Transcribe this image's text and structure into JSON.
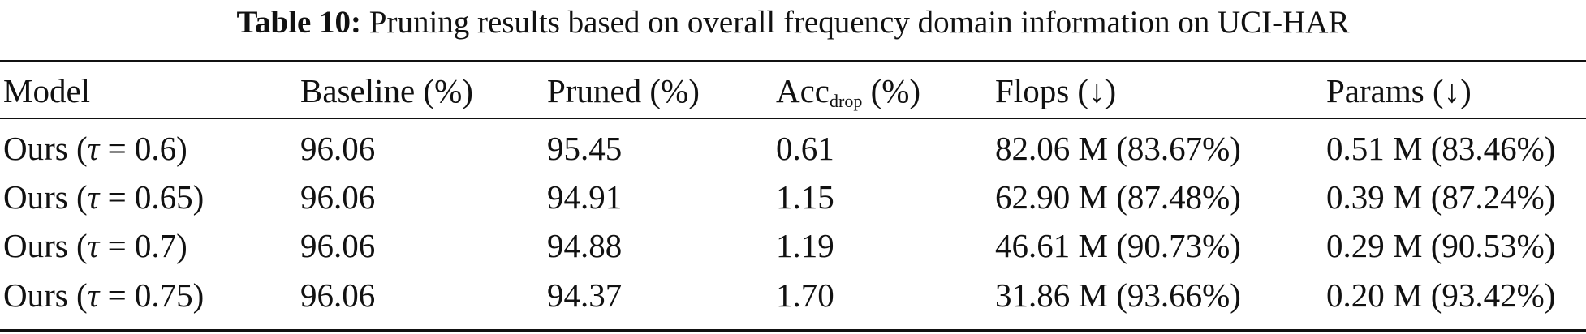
{
  "caption": {
    "label": "Table 10:",
    "text": "Pruning results based on overall frequency domain information on UCI-HAR"
  },
  "table": {
    "headers": {
      "model": "Model",
      "baseline": "Baseline (%)",
      "pruned": "Pruned (%)",
      "acc_main": "Acc",
      "acc_sub": "drop",
      "acc_unit": " (%)",
      "flops": "Flops (↓)",
      "params": "Params (↓)"
    },
    "rows": [
      {
        "model_prefix": "Ours (",
        "tau": "τ",
        "model_suffix": " = 0.6)",
        "baseline": "96.06",
        "pruned": "95.45",
        "acc_drop": "0.61",
        "flops": "82.06 M (83.67%)",
        "params": "0.51 M (83.46%)"
      },
      {
        "model_prefix": "Ours (",
        "tau": "τ",
        "model_suffix": " = 0.65)",
        "baseline": "96.06",
        "pruned": "94.91",
        "acc_drop": "1.15",
        "flops": "62.90 M (87.48%)",
        "params": "0.39 M (87.24%)"
      },
      {
        "model_prefix": "Ours (",
        "tau": "τ",
        "model_suffix": " = 0.7)",
        "baseline": "96.06",
        "pruned": "94.88",
        "acc_drop": "1.19",
        "flops": "46.61 M (90.73%)",
        "params": "0.29 M (90.53%)"
      },
      {
        "model_prefix": "Ours (",
        "tau": "τ",
        "model_suffix": " = 0.75)",
        "baseline": "96.06",
        "pruned": "94.37",
        "acc_drop": "1.70",
        "flops": "31.86 M (93.66%)",
        "params": "0.20 M (93.42%)"
      }
    ]
  }
}
